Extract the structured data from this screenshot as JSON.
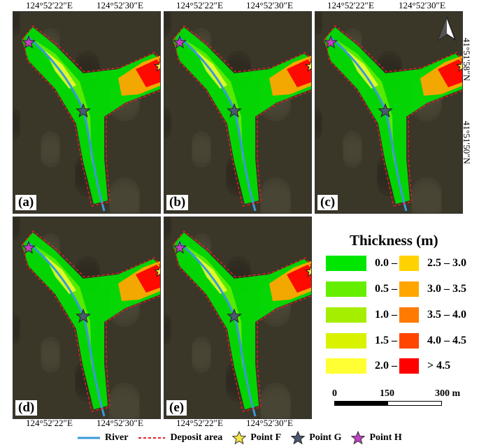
{
  "coords": {
    "lon_west": "124°52′22″E",
    "lon_east": "124°52′30″E",
    "lat_north": "41°51′58″N",
    "lat_south": "41°51′50″N"
  },
  "panels": [
    {
      "label": "(a)"
    },
    {
      "label": "(b)"
    },
    {
      "label": "(c)"
    },
    {
      "label": "(d)"
    },
    {
      "label": "(e)"
    }
  ],
  "legend": {
    "title": "Thickness (m)",
    "classes": [
      {
        "range": "0.0 – 0.5",
        "color": "#00e600"
      },
      {
        "range": "0.5 – 1.0",
        "color": "#66ee00"
      },
      {
        "range": "1.0 – 1.5",
        "color": "#a6ee00"
      },
      {
        "range": "1.5 – 2.0",
        "color": "#d9f200"
      },
      {
        "range": "2.0 – 2.5",
        "color": "#ffff33"
      },
      {
        "range": "2.5 – 3.0",
        "color": "#ffd200"
      },
      {
        "range": "3.0 – 3.5",
        "color": "#ffa500"
      },
      {
        "range": "3.5 – 4.0",
        "color": "#ff7a00"
      },
      {
        "range": "4.0 – 4.5",
        "color": "#ff4500"
      },
      {
        "range": "> 4.5",
        "color": "#ff0000"
      }
    ]
  },
  "scale": {
    "zero": "0",
    "mid": "150",
    "end": "300 m"
  },
  "map_legend": {
    "river": "River",
    "deposit": "Deposit area",
    "point_f": "Point F",
    "point_g": "Point G",
    "point_h": "Point H"
  },
  "colors": {
    "river": "#3a9ad9",
    "deposit": "#e02020",
    "point_f": "#f5e642",
    "point_g": "#4a5a70",
    "point_h": "#c040c0",
    "background": "#3a3628"
  },
  "north_icon": "north-arrow-icon"
}
